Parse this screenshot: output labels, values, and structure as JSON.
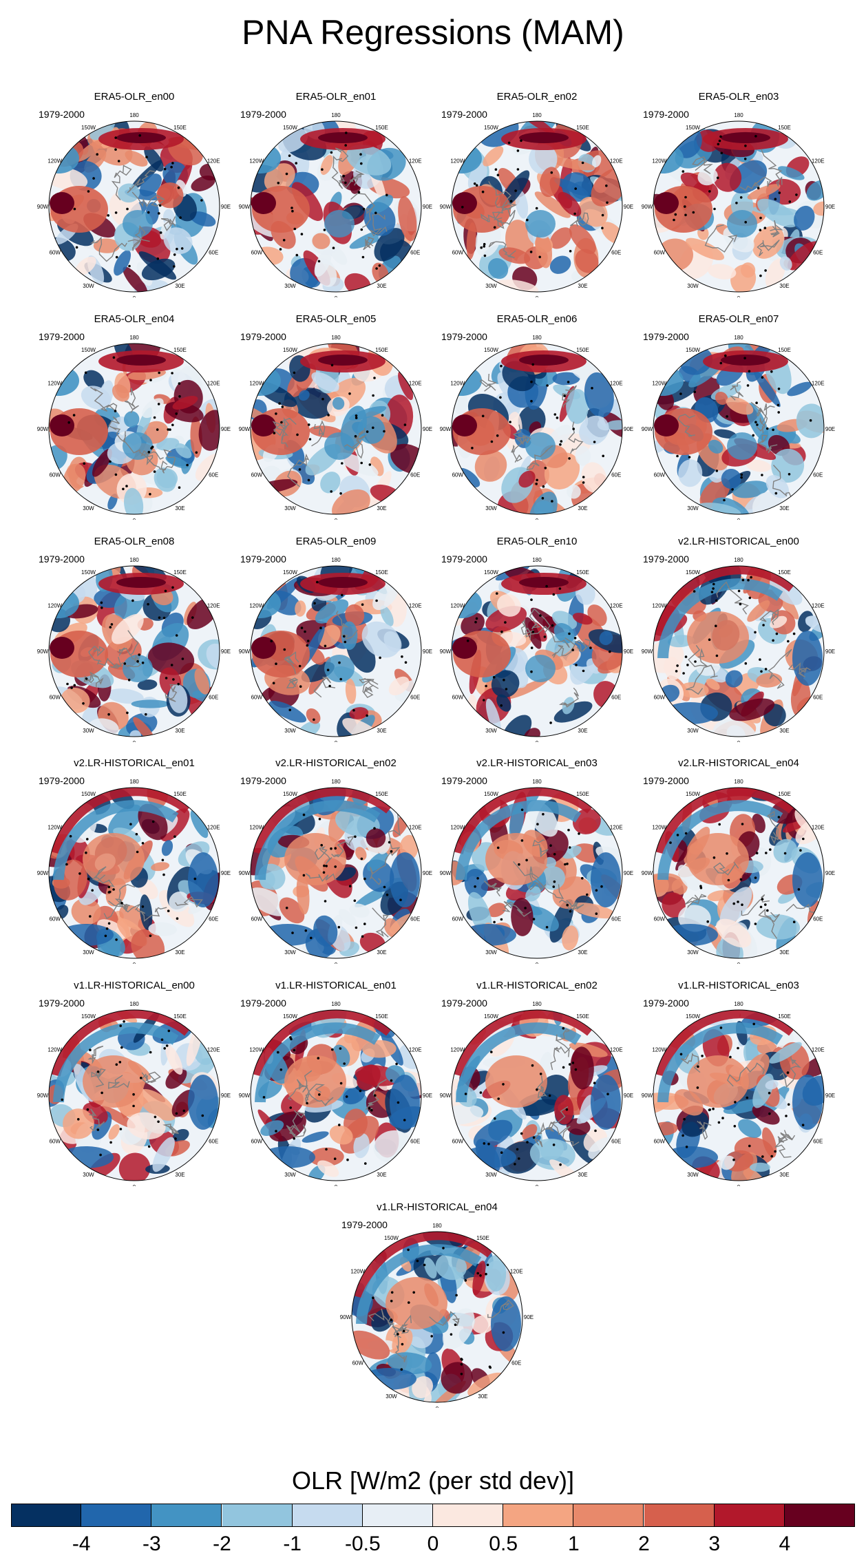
{
  "title": "PNA Regressions (MAM)",
  "period": "1979-2000",
  "panels": [
    {
      "title": "ERA5-OLR_en00",
      "style": "era5"
    },
    {
      "title": "ERA5-OLR_en01",
      "style": "era5"
    },
    {
      "title": "ERA5-OLR_en02",
      "style": "era5"
    },
    {
      "title": "ERA5-OLR_en03",
      "style": "era5"
    },
    {
      "title": "ERA5-OLR_en04",
      "style": "era5"
    },
    {
      "title": "ERA5-OLR_en05",
      "style": "era5"
    },
    {
      "title": "ERA5-OLR_en06",
      "style": "era5"
    },
    {
      "title": "ERA5-OLR_en07",
      "style": "era5"
    },
    {
      "title": "ERA5-OLR_en08",
      "style": "era5"
    },
    {
      "title": "ERA5-OLR_en09",
      "style": "era5"
    },
    {
      "title": "ERA5-OLR_en10",
      "style": "era5"
    },
    {
      "title": "v2.LR-HISTORICAL_en00",
      "style": "model"
    },
    {
      "title": "v2.LR-HISTORICAL_en01",
      "style": "model"
    },
    {
      "title": "v2.LR-HISTORICAL_en02",
      "style": "model"
    },
    {
      "title": "v2.LR-HISTORICAL_en03",
      "style": "model"
    },
    {
      "title": "v2.LR-HISTORICAL_en04",
      "style": "model"
    },
    {
      "title": "v1.LR-HISTORICAL_en00",
      "style": "model"
    },
    {
      "title": "v1.LR-HISTORICAL_en01",
      "style": "model"
    },
    {
      "title": "v1.LR-HISTORICAL_en02",
      "style": "model"
    },
    {
      "title": "v1.LR-HISTORICAL_en03",
      "style": "model"
    },
    {
      "title": "v1.LR-HISTORICAL_en04",
      "style": "model"
    }
  ],
  "longitude_labels": [
    "180",
    "150E",
    "120E",
    "90E",
    "60E",
    "30E",
    "0",
    "30W",
    "60W",
    "90W",
    "120W",
    "150W"
  ],
  "colorbar": {
    "title": "OLR [W/m2 (per std dev)]",
    "colors": [
      "#053061",
      "#2166ac",
      "#4393c3",
      "#92c5de",
      "#c6dbef",
      "#e7eef5",
      "#fbe8e0",
      "#f4a582",
      "#e8896b",
      "#d6604d",
      "#b2182b",
      "#67001f"
    ],
    "ticks": [
      "-4",
      "-3",
      "-2",
      "-1",
      "-0.5",
      "0",
      "0.5",
      "1",
      "2",
      "3",
      "4"
    ]
  }
}
